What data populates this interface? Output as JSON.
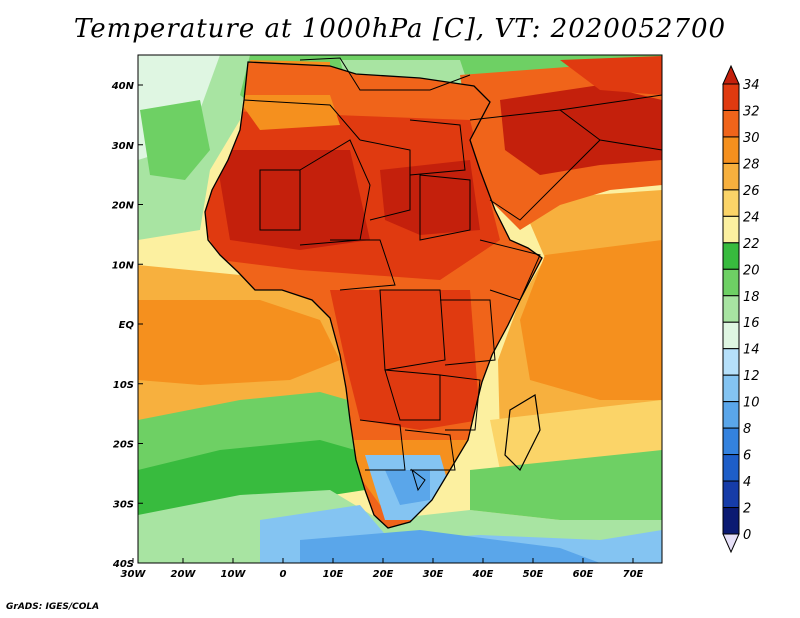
{
  "title": "Temperature at 1000hPa [C], VT: 2020052700",
  "footer": "GrADS: IGES/COLA",
  "lat_ticks": [
    "40N",
    "30N",
    "20N",
    "10N",
    "EQ",
    "10S",
    "20S",
    "30S",
    "40S"
  ],
  "lon_ticks": [
    "30W",
    "20W",
    "10W",
    "0",
    "10E",
    "20E",
    "30E",
    "40E",
    "50E",
    "60E",
    "70E"
  ],
  "colorbar": {
    "labels": [
      "34",
      "32",
      "30",
      "28",
      "26",
      "24",
      "22",
      "20",
      "18",
      "16",
      "14",
      "12",
      "10",
      "8",
      "6",
      "4",
      "2",
      "0"
    ],
    "colors": [
      "#c4200c",
      "#e03a10",
      "#f0641a",
      "#f5901e",
      "#f7b03e",
      "#fbd468",
      "#fcf0a0",
      "#38bb3e",
      "#6ed064",
      "#a8e4a2",
      "#dff6e2",
      "#b6e0fa",
      "#84c4f2",
      "#5aa6ea",
      "#3482de",
      "#1e5ec8",
      "#163ca8",
      "#0b1a72"
    ]
  },
  "map_fields": {
    "ocean_north": "#fcf0a0",
    "ocean_equatorial": "#f7b03e",
    "ocean_south_warm": "#f5901e",
    "ocean_south_mid": "#6ed064",
    "ocean_south_cool": "#a8e4a2",
    "ocean_far_south": "#84c4f2",
    "europe": "#6ed064",
    "sahara_hot": "#e03a10",
    "arabia_hot": "#c4200c",
    "central_africa": "#f0641a",
    "south_africa_cool": "#84c4f2",
    "border_color": "#000000"
  }
}
